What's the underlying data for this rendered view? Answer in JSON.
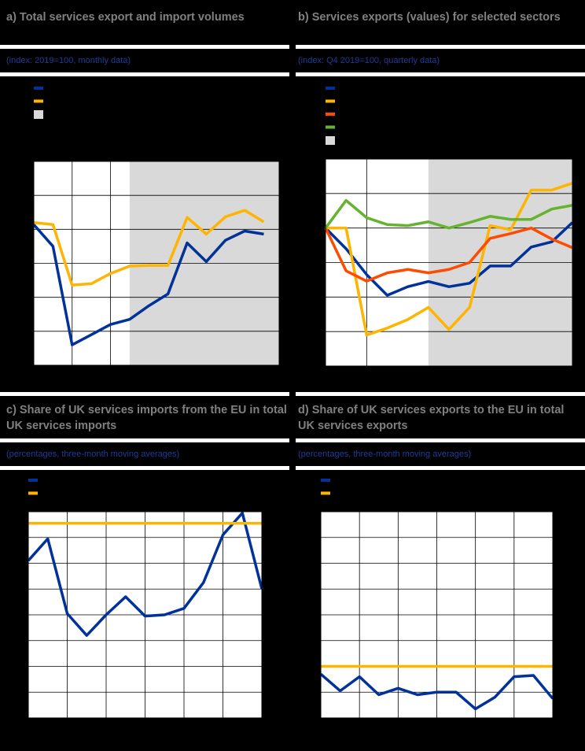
{
  "chart_data": [
    {
      "type": "line",
      "title": "a) Total services export and import volumes",
      "subtitle": "(index: 2019=100, monthly data)",
      "x": [
        0,
        1,
        2,
        3,
        4,
        5,
        6,
        7,
        8,
        9,
        10,
        11,
        12
      ],
      "xlim": [
        0,
        12.8
      ],
      "xticks": [
        0,
        2,
        4
      ],
      "shade": [
        5,
        12.8
      ],
      "ylim": [
        60,
        120
      ],
      "yticks": [
        60,
        70,
        80,
        90,
        100,
        110,
        120
      ],
      "grid": true,
      "series": [
        {
          "color": "#003299",
          "values": [
            101.4,
            95,
            66,
            69,
            72,
            73.5,
            77.5,
            81,
            96,
            90.5,
            96.8,
            99.5,
            98.6
          ]
        },
        {
          "color": "#ffb400",
          "values": [
            102,
            101.4,
            83.6,
            84,
            87,
            89.2,
            89.4,
            89.4,
            103.5,
            98.6,
            103.7,
            105.6,
            102.2
          ]
        }
      ]
    },
    {
      "type": "line",
      "title": "b) Services exports (values) for selected sectors",
      "subtitle": "(index: Q4 2019=100, quarterly data)",
      "x": [
        0,
        1,
        2,
        3,
        4,
        5,
        6,
        7,
        8,
        9,
        10,
        11,
        12
      ],
      "xlim": [
        0,
        12
      ],
      "xticks": [
        0,
        2
      ],
      "shade": [
        5,
        12
      ],
      "ylim": [
        60,
        120
      ],
      "yticks": [
        60,
        70,
        80,
        90,
        100,
        110,
        120
      ],
      "grid": true,
      "series": [
        {
          "color": "#003299",
          "values": [
            100,
            94,
            86.5,
            80.5,
            83,
            84.5,
            83,
            84,
            89,
            89,
            94.5,
            96,
            101.6
          ]
        },
        {
          "color": "#ffb400",
          "values": [
            100,
            100,
            69,
            71,
            73.5,
            77,
            70.6,
            77,
            100.7,
            99.5,
            111,
            111,
            113
          ]
        },
        {
          "color": "#ff4b00",
          "values": [
            100,
            87.6,
            84.6,
            87,
            88,
            87,
            88,
            90,
            97,
            98.4,
            100,
            96.8,
            94.3
          ]
        },
        {
          "color": "#65b32e",
          "values": [
            100,
            108,
            103,
            101,
            100.7,
            101.8,
            100,
            101.6,
            103.4,
            102.5,
            102.5,
            105.5,
            106.6
          ]
        }
      ]
    },
    {
      "type": "line",
      "title": "c) Share of UK services imports from the EU in total UK services imports",
      "subtitle": "(percentages, three-month moving averages)",
      "x": [
        0,
        1,
        2,
        3,
        4,
        5,
        6,
        7,
        8,
        9,
        10,
        11,
        12
      ],
      "xlim": [
        0,
        12
      ],
      "xticks": [
        0,
        2,
        4,
        6,
        8,
        10,
        12
      ],
      "ylim": [
        30,
        46
      ],
      "yticks": [
        30,
        32,
        34,
        36,
        38,
        40,
        42,
        44,
        46
      ],
      "grid": true,
      "series": [
        {
          "color": "#003299",
          "values": [
            42.2,
            43.9,
            38.1,
            36.4,
            38,
            39.4,
            37.9,
            38,
            38.5,
            40.5,
            44.2,
            45.9,
            40
          ]
        },
        {
          "color": "#ffb400",
          "values": [
            45.1,
            45.1,
            45.1,
            45.1,
            45.1,
            45.1,
            45.1,
            45.1,
            45.1,
            45.1,
            45.1,
            45.1,
            45.1
          ]
        }
      ]
    },
    {
      "type": "line",
      "title": "d) Share of UK services exports to the EU in total UK services exports",
      "subtitle": "(percentages, three-month moving averages)",
      "x": [
        0,
        1,
        2,
        3,
        4,
        5,
        6,
        7,
        8,
        9,
        10,
        11,
        12
      ],
      "xlim": [
        0,
        12
      ],
      "xticks": [
        0,
        2,
        4,
        6,
        8,
        10,
        12
      ],
      "ylim": [
        30,
        46
      ],
      "yticks": [
        30,
        32,
        34,
        36,
        38,
        40,
        42,
        44,
        46
      ],
      "grid": true,
      "series": [
        {
          "color": "#003299",
          "values": [
            33.4,
            32.1,
            33.2,
            31.8,
            32.3,
            31.8,
            32,
            32,
            30.7,
            31.6,
            33.2,
            33.3,
            31.5
          ]
        },
        {
          "color": "#ffb400",
          "values": [
            34,
            34,
            34,
            34,
            34,
            34,
            34,
            34,
            34,
            34,
            34,
            34,
            34
          ]
        }
      ]
    }
  ]
}
